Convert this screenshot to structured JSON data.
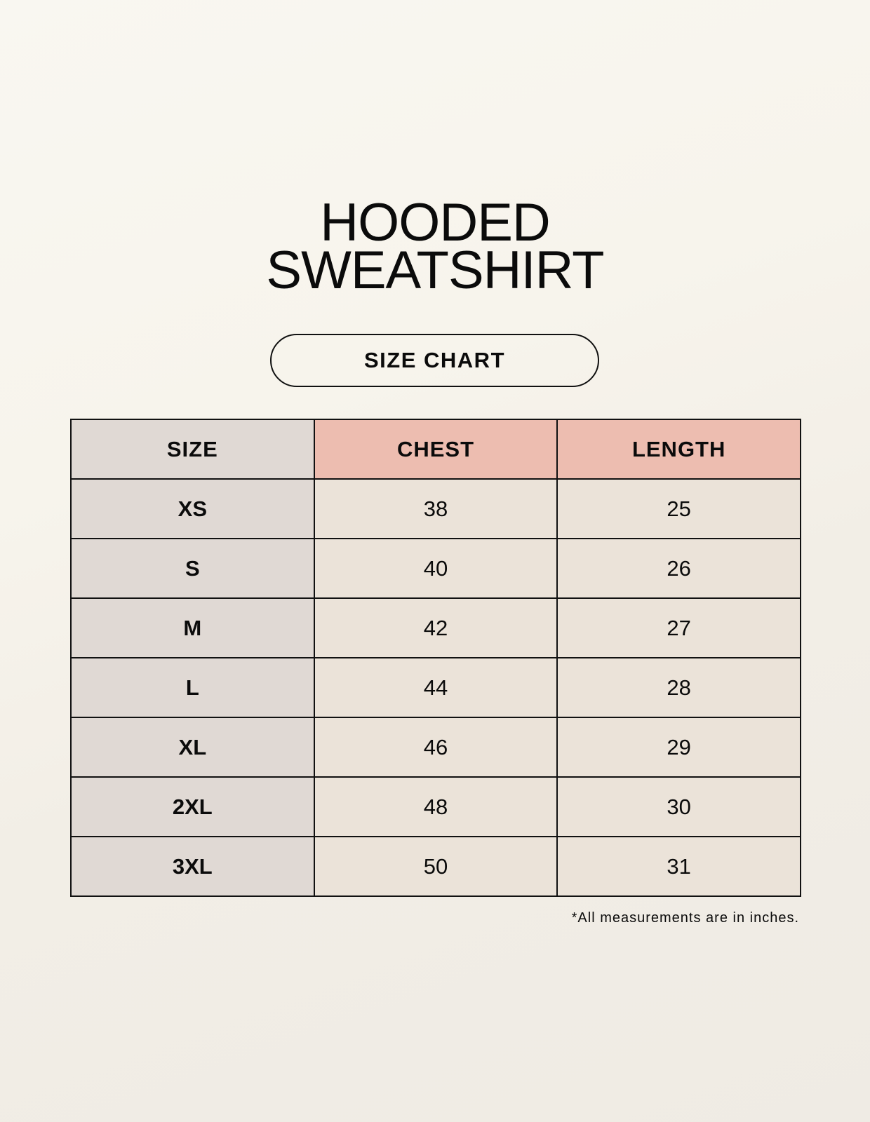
{
  "title": {
    "line1": "HOODED",
    "line2": "SWEATSHIRT"
  },
  "subtitle": "SIZE CHART",
  "table": {
    "headers": [
      "SIZE",
      "CHEST",
      "LENGTH"
    ],
    "rows": [
      [
        "XS",
        "38",
        "25"
      ],
      [
        "S",
        "40",
        "26"
      ],
      [
        "M",
        "42",
        "27"
      ],
      [
        "L",
        "44",
        "28"
      ],
      [
        "XL",
        "46",
        "29"
      ],
      [
        "2XL",
        "48",
        "30"
      ],
      [
        "3XL",
        "50",
        "31"
      ]
    ]
  },
  "note": "*All measurements are in inches.",
  "colors": {
    "size_column": "#e0d9d4",
    "header_accent": "#edbdb0",
    "value_cells": "#ebe3d9"
  }
}
